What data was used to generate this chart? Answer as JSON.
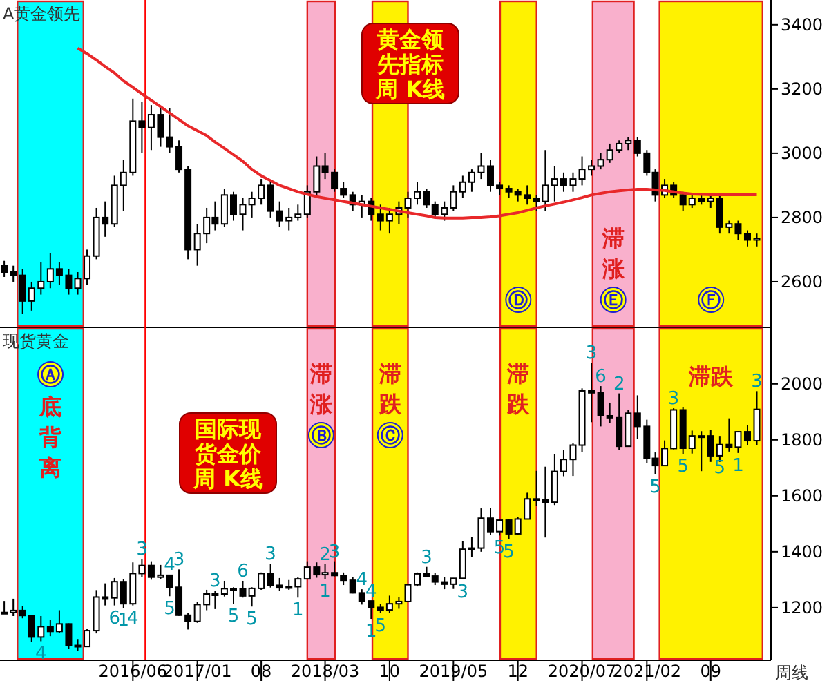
{
  "chart_data": [
    {
      "type": "candlestick",
      "title": "A黄金领先",
      "tick_labels": "y",
      "x": [
        "2015-04",
        "2015-05",
        "2015-06",
        "2015-07",
        "2015-08",
        "2015-09",
        "2015-10",
        "2015-11",
        "2015-12",
        "2016-01",
        "2016-02",
        "2016-03",
        "2016-04",
        "2016-05",
        "2016-06",
        "2016-07",
        "2016-08",
        "2016-09",
        "2016-10",
        "2016-11",
        "2016-12",
        "2017-01",
        "2017-02",
        "2017-03",
        "2017-04",
        "2017-05",
        "2017-06",
        "2017-07",
        "2017-08",
        "2017-09",
        "2017-10",
        "2017-11",
        "2017-12",
        "2018-01",
        "2018-02",
        "2018-03",
        "2018-04",
        "2018-05",
        "2018-06",
        "2018-07",
        "2018-08",
        "2018-09",
        "2018-10",
        "2018-11",
        "2018-12",
        "2019-01",
        "2019-02",
        "2019-03",
        "2019-04",
        "2019-05",
        "2019-06",
        "2019-07",
        "2019-08",
        "2019-09",
        "2019-10",
        "2019-11",
        "2019-12",
        "2020-01",
        "2020-02",
        "2020-03",
        "2020-04",
        "2020-05",
        "2020-06",
        "2020-07",
        "2020-08",
        "2020-09",
        "2020-10",
        "2020-11",
        "2020-12",
        "2021-01",
        "2021-02",
        "2021-03",
        "2021-04",
        "2021-05",
        "2021-06",
        "2021-07",
        "2021-08",
        "2021-09",
        "2021-10",
        "2021-11",
        "2021-12",
        "2022-01",
        "2022-02"
      ],
      "xlim": [
        "2015-03-18",
        "2022-03-20"
      ],
      "ylim": [
        2458,
        3477
      ],
      "yticks": [
        2600,
        2800,
        3000,
        3200,
        3400
      ],
      "series": [
        {
          "type": "candlestick",
          "color": "#000000",
          "ohlc": [
            [
              2650,
              2665,
              2615,
              2630
            ],
            [
              2630,
              2650,
              2600,
              2620
            ],
            [
              2620,
              2640,
              2500,
              2540
            ],
            [
              2540,
              2600,
              2510,
              2580
            ],
            [
              2580,
              2660,
              2560,
              2600
            ],
            [
              2600,
              2690,
              2580,
              2640
            ],
            [
              2640,
              2660,
              2590,
              2620
            ],
            [
              2620,
              2640,
              2560,
              2580
            ],
            [
              2580,
              2630,
              2560,
              2610
            ],
            [
              2610,
              2700,
              2590,
              2680
            ],
            [
              2680,
              2830,
              2670,
              2800
            ],
            [
              2800,
              2850,
              2740,
              2780
            ],
            [
              2780,
              2930,
              2770,
              2900
            ],
            [
              2900,
              2980,
              2820,
              2940
            ],
            [
              2940,
              3170,
              2930,
              3100
            ],
            [
              3100,
              3160,
              3000,
              3080
            ],
            [
              3080,
              3150,
              3010,
              3120
            ],
            [
              3120,
              3140,
              3020,
              3050
            ],
            [
              3050,
              3140,
              3000,
              3020
            ],
            [
              3020,
              3040,
              2940,
              2950
            ],
            [
              2950,
              2960,
              2670,
              2700
            ],
            [
              2700,
              2780,
              2650,
              2750
            ],
            [
              2750,
              2830,
              2720,
              2800
            ],
            [
              2800,
              2850,
              2760,
              2780
            ],
            [
              2780,
              2890,
              2770,
              2870
            ],
            [
              2870,
              2880,
              2790,
              2810
            ],
            [
              2810,
              2860,
              2760,
              2840
            ],
            [
              2840,
              2880,
              2800,
              2860
            ],
            [
              2860,
              2920,
              2840,
              2900
            ],
            [
              2900,
              2910,
              2800,
              2820
            ],
            [
              2820,
              2850,
              2770,
              2790
            ],
            [
              2790,
              2830,
              2760,
              2800
            ],
            [
              2800,
              2840,
              2790,
              2810
            ],
            [
              2810,
              2900,
              2800,
              2880
            ],
            [
              2880,
              2990,
              2870,
              2960
            ],
            [
              2960,
              3000,
              2920,
              2940
            ],
            [
              2940,
              2950,
              2880,
              2890
            ],
            [
              2890,
              2910,
              2860,
              2870
            ],
            [
              2870,
              2880,
              2820,
              2840
            ],
            [
              2840,
              2870,
              2800,
              2850
            ],
            [
              2850,
              2860,
              2790,
              2810
            ],
            [
              2810,
              2840,
              2760,
              2790
            ],
            [
              2790,
              2830,
              2750,
              2810
            ],
            [
              2810,
              2850,
              2780,
              2830
            ],
            [
              2830,
              2880,
              2800,
              2860
            ],
            [
              2860,
              2910,
              2840,
              2880
            ],
            [
              2880,
              2890,
              2830,
              2840
            ],
            [
              2840,
              2850,
              2800,
              2810
            ],
            [
              2810,
              2850,
              2790,
              2830
            ],
            [
              2830,
              2900,
              2820,
              2880
            ],
            [
              2880,
              2930,
              2860,
              2910
            ],
            [
              2910,
              2950,
              2880,
              2940
            ],
            [
              2940,
              3000,
              2920,
              2960
            ],
            [
              2960,
              2980,
              2880,
              2900
            ],
            [
              2900,
              2910,
              2870,
              2890
            ],
            [
              2890,
              2900,
              2860,
              2880
            ],
            [
              2880,
              2890,
              2850,
              2870
            ],
            [
              2870,
              2900,
              2840,
              2860
            ],
            [
              2860,
              2870,
              2820,
              2850
            ],
            [
              2850,
              3010,
              2820,
              2900
            ],
            [
              2900,
              2960,
              2850,
              2920
            ],
            [
              2920,
              2940,
              2880,
              2900
            ],
            [
              2900,
              2940,
              2880,
              2920
            ],
            [
              2920,
              2990,
              2900,
              2950
            ],
            [
              2950,
              2980,
              2930,
              2960
            ],
            [
              2960,
              3000,
              2950,
              2980
            ],
            [
              2980,
              3030,
              2970,
              3010
            ],
            [
              3010,
              3040,
              3000,
              3030
            ],
            [
              3030,
              3050,
              3010,
              3040
            ],
            [
              3040,
              3050,
              2990,
              3000
            ],
            [
              3000,
              3010,
              2930,
              2940
            ],
            [
              2940,
              2950,
              2850,
              2870
            ],
            [
              2870,
              2920,
              2860,
              2900
            ],
            [
              2900,
              2910,
              2860,
              2870
            ],
            [
              2870,
              2880,
              2820,
              2840
            ],
            [
              2840,
              2870,
              2830,
              2860
            ],
            [
              2860,
              2870,
              2840,
              2850
            ],
            [
              2850,
              2870,
              2830,
              2860
            ],
            [
              2860,
              2870,
              2750,
              2770
            ],
            [
              2770,
              2790,
              2750,
              2780
            ],
            [
              2780,
              2790,
              2730,
              2750
            ],
            [
              2750,
              2760,
              2710,
              2730
            ],
            [
              2730,
              2750,
              2710,
              2735
            ]
          ]
        },
        {
          "type": "line",
          "color": "#e8282a",
          "values": [
            null,
            null,
            null,
            null,
            null,
            null,
            null,
            null,
            3327,
            3310,
            3290,
            3270,
            3250,
            3225,
            3205,
            3185,
            3165,
            3145,
            3125,
            3105,
            3085,
            3070,
            3055,
            3035,
            3015,
            2995,
            2975,
            2950,
            2930,
            2915,
            2900,
            2890,
            2880,
            2872,
            2865,
            2860,
            2855,
            2850,
            2845,
            2840,
            2835,
            2830,
            2825,
            2820,
            2815,
            2810,
            2805,
            2800,
            2798,
            2798,
            2798,
            2800,
            2800,
            2802,
            2805,
            2810,
            2815,
            2822,
            2830,
            2836,
            2842,
            2848,
            2855,
            2862,
            2870,
            2875,
            2880,
            2883,
            2886,
            2888,
            2888,
            2886,
            2884,
            2880,
            2876,
            2873,
            2872,
            2871,
            2871,
            2871,
            2871,
            2871,
            2871
          ]
        }
      ],
      "bands": [
        {
          "axis": "x",
          "from": "2015-05-15",
          "to": "2015-12-20",
          "color": "#00ffff"
        },
        {
          "axis": "x",
          "from": "2018-01-01",
          "to": "2018-04-03",
          "color": "#f9b0cc"
        },
        {
          "axis": "x",
          "from": "2018-08-05",
          "to": "2018-12-01",
          "color": "#fff200"
        },
        {
          "axis": "x",
          "from": "2019-10-03",
          "to": "2020-02-01",
          "color": "#fff200",
          "label": "Ⓓ"
        },
        {
          "axis": "x",
          "from": "2020-08-05",
          "to": "2020-12-20",
          "color": "#f9b0cc",
          "label": "滞涨 Ⓔ"
        },
        {
          "axis": "x",
          "from": "2021-03-15",
          "to": "2022-02-20",
          "color": "#fff200",
          "label": "Ⓕ"
        }
      ],
      "ref_lines": [
        {
          "axis": "x",
          "value": "2016-07-12",
          "color": "#ff0000"
        }
      ],
      "annotations": [
        "黄金领先指标周 K线"
      ]
    },
    {
      "type": "candlestick",
      "title": "现货黄金",
      "x": [
        "2015-04",
        "2015-05",
        "2015-06",
        "2015-07",
        "2015-08",
        "2015-09",
        "2015-10",
        "2015-11",
        "2015-12",
        "2016-01",
        "2016-02",
        "2016-03",
        "2016-04",
        "2016-05",
        "2016-06",
        "2016-07",
        "2016-08",
        "2016-09",
        "2016-10",
        "2016-11",
        "2016-12",
        "2017-01",
        "2017-02",
        "2017-03",
        "2017-04",
        "2017-05",
        "2017-06",
        "2017-07",
        "2017-08",
        "2017-09",
        "2017-10",
        "2017-11",
        "2017-12",
        "2018-01",
        "2018-02",
        "2018-03",
        "2018-04",
        "2018-05",
        "2018-06",
        "2018-07",
        "2018-08",
        "2018-09",
        "2018-10",
        "2018-11",
        "2018-12",
        "2019-01",
        "2019-02",
        "2019-03",
        "2019-04",
        "2019-05",
        "2019-06",
        "2019-07",
        "2019-08",
        "2019-09",
        "2019-10",
        "2019-11",
        "2019-12",
        "2020-01",
        "2020-02",
        "2020-03",
        "2020-04",
        "2020-05",
        "2020-06",
        "2020-07",
        "2020-08",
        "2020-09",
        "2020-10",
        "2020-11",
        "2020-12",
        "2021-01",
        "2021-02",
        "2021-03",
        "2021-04",
        "2021-05",
        "2021-06",
        "2021-07",
        "2021-08",
        "2021-09",
        "2021-10",
        "2021-11",
        "2021-12",
        "2022-01",
        "2022-02"
      ],
      "xlim": [
        "2015-03-18",
        "2022-03-20"
      ],
      "xticks": [
        {
          "value": "2016-06",
          "label": "2016/06"
        },
        {
          "value": "2017-01",
          "label": "2017/01"
        },
        {
          "value": "2017-08",
          "label": "08"
        },
        {
          "value": "2018-03",
          "label": "2018/03"
        },
        {
          "value": "2018-10",
          "label": "10"
        },
        {
          "value": "2019-05",
          "label": "2019/05"
        },
        {
          "value": "2019-12",
          "label": "12"
        },
        {
          "value": "2020-07",
          "label": "2020/07"
        },
        {
          "value": "2021-02",
          "label": "2021/02"
        },
        {
          "value": "2021-09",
          "label": "09"
        }
      ],
      "ylim": [
        1012,
        2202
      ],
      "yticks": [
        1200,
        1400,
        1600,
        1800,
        2000
      ],
      "series": [
        {
          "type": "candlestick",
          "color": "#000000",
          "ohlc": [
            [
              1183,
              1224,
              1178,
              1183
            ],
            [
              1183,
              1232,
              1170,
              1190
            ],
            [
              1190,
              1205,
              1162,
              1172
            ],
            [
              1172,
              1175,
              1077,
              1095
            ],
            [
              1095,
              1170,
              1080,
              1132
            ],
            [
              1132,
              1157,
              1098,
              1115
            ],
            [
              1115,
              1191,
              1110,
              1142
            ],
            [
              1142,
              1144,
              1052,
              1065
            ],
            [
              1065,
              1088,
              1046,
              1061
            ],
            [
              1061,
              1123,
              1061,
              1118
            ],
            [
              1118,
              1263,
              1108,
              1238
            ],
            [
              1238,
              1287,
              1208,
              1235
            ],
            [
              1235,
              1306,
              1208,
              1293
            ],
            [
              1293,
              1303,
              1199,
              1214
            ],
            [
              1214,
              1362,
              1208,
              1322
            ],
            [
              1322,
              1375,
              1310,
              1351
            ],
            [
              1351,
              1366,
              1300,
              1309
            ],
            [
              1309,
              1353,
              1302,
              1316
            ],
            [
              1316,
              1318,
              1241,
              1273
            ],
            [
              1273,
              1337,
              1171,
              1173
            ],
            [
              1173,
              1180,
              1122,
              1151
            ],
            [
              1151,
              1220,
              1146,
              1211
            ],
            [
              1211,
              1264,
              1191,
              1249
            ],
            [
              1249,
              1261,
              1195,
              1249
            ],
            [
              1249,
              1296,
              1240,
              1268
            ],
            [
              1268,
              1273,
              1214,
              1268
            ],
            [
              1268,
              1296,
              1236,
              1242
            ],
            [
              1242,
              1273,
              1204,
              1269
            ],
            [
              1269,
              1326,
              1264,
              1322
            ],
            [
              1322,
              1357,
              1272,
              1280
            ],
            [
              1280,
              1306,
              1260,
              1271
            ],
            [
              1271,
              1299,
              1264,
              1275
            ],
            [
              1275,
              1309,
              1236,
              1303
            ],
            [
              1303,
              1366,
              1302,
              1345
            ],
            [
              1345,
              1362,
              1307,
              1318
            ],
            [
              1318,
              1356,
              1303,
              1325
            ],
            [
              1325,
              1366,
              1312,
              1315
            ],
            [
              1315,
              1326,
              1281,
              1298
            ],
            [
              1298,
              1309,
              1251,
              1253
            ],
            [
              1253,
              1266,
              1211,
              1224
            ],
            [
              1224,
              1224,
              1160,
              1201
            ],
            [
              1201,
              1214,
              1180,
              1192
            ],
            [
              1192,
              1243,
              1182,
              1214
            ],
            [
              1214,
              1237,
              1196,
              1222
            ],
            [
              1222,
              1284,
              1221,
              1282
            ],
            [
              1282,
              1326,
              1276,
              1321
            ],
            [
              1321,
              1346,
              1311,
              1313
            ],
            [
              1313,
              1324,
              1281,
              1292
            ],
            [
              1292,
              1310,
              1266,
              1284
            ],
            [
              1284,
              1306,
              1267,
              1305
            ],
            [
              1305,
              1439,
              1302,
              1409
            ],
            [
              1409,
              1453,
              1382,
              1413
            ],
            [
              1413,
              1555,
              1400,
              1520
            ],
            [
              1520,
              1557,
              1459,
              1472
            ],
            [
              1472,
              1517,
              1458,
              1513
            ],
            [
              1513,
              1516,
              1445,
              1464
            ],
            [
              1464,
              1524,
              1459,
              1517
            ],
            [
              1517,
              1611,
              1517,
              1589
            ],
            [
              1589,
              1689,
              1563,
              1585
            ],
            [
              1585,
              1704,
              1451,
              1577
            ],
            [
              1577,
              1748,
              1567,
              1687
            ],
            [
              1687,
              1765,
              1670,
              1730
            ],
            [
              1730,
              1789,
              1671,
              1781
            ],
            [
              1781,
              1984,
              1757,
              1975
            ],
            [
              1975,
              2075,
              1863,
              1968
            ],
            [
              1968,
              1992,
              1848,
              1886
            ],
            [
              1886,
              1933,
              1860,
              1879
            ],
            [
              1879,
              1966,
              1764,
              1777
            ],
            [
              1777,
              1906,
              1775,
              1895
            ],
            [
              1895,
              1959,
              1803,
              1848
            ],
            [
              1848,
              1872,
              1717,
              1734
            ],
            [
              1734,
              1755,
              1677,
              1708
            ],
            [
              1708,
              1798,
              1706,
              1769
            ],
            [
              1769,
              1913,
              1766,
              1907
            ],
            [
              1907,
              1917,
              1750,
              1770
            ],
            [
              1770,
              1833,
              1751,
              1814
            ],
            [
              1814,
              1831,
              1688,
              1814
            ],
            [
              1814,
              1836,
              1721,
              1743
            ],
            [
              1743,
              1814,
              1721,
              1783
            ],
            [
              1783,
              1877,
              1758,
              1774
            ],
            [
              1774,
              1831,
              1753,
              1829
            ],
            [
              1829,
              1853,
              1780,
              1797
            ],
            [
              1797,
              1974,
              1781,
              1909
            ]
          ]
        }
      ],
      "bands": [
        {
          "axis": "x",
          "from": "2015-05-15",
          "to": "2015-12-20",
          "color": "#00ffff",
          "label": "Ⓐ 底背离"
        },
        {
          "axis": "x",
          "from": "2018-01-01",
          "to": "2018-04-03",
          "color": "#f9b0cc",
          "label": "滞涨 Ⓑ"
        },
        {
          "axis": "x",
          "from": "2018-08-05",
          "to": "2018-12-01",
          "color": "#fff200",
          "label": "滞跌 Ⓒ"
        },
        {
          "axis": "x",
          "from": "2019-10-03",
          "to": "2020-02-01",
          "color": "#fff200",
          "label": "滞跌"
        },
        {
          "axis": "x",
          "from": "2020-08-05",
          "to": "2020-12-20",
          "color": "#f9b0cc"
        },
        {
          "axis": "x",
          "from": "2021-03-15",
          "to": "2022-02-20",
          "color": "#fff200",
          "label": "滞跌"
        }
      ],
      "ref_lines": [
        {
          "axis": "x",
          "value": "2016-07-12",
          "color": "#ff0000"
        }
      ],
      "annotations": [
        "国际现货金价周 K线",
        "周线",
        {
          "text": "4",
          "x": "2015-08",
          "y": 1080
        },
        {
          "text": "6",
          "x": "2016-04",
          "y": 1208
        },
        {
          "text": "4",
          "x": "2016-06",
          "y": 1208
        },
        {
          "text": "1",
          "x": "2016-05",
          "y": 1199
        },
        {
          "text": "3",
          "x": "2016-07",
          "y": 1375
        },
        {
          "text": "4",
          "x": "2016-10",
          "y": 1318
        },
        {
          "text": "3",
          "x": "2016-11",
          "y": 1337
        },
        {
          "text": "5",
          "x": "2016-10",
          "y": 1241
        },
        {
          "text": "3",
          "x": "2017-03",
          "y": 1261
        },
        {
          "text": "5",
          "x": "2017-05",
          "y": 1214
        },
        {
          "text": "6",
          "x": "2017-06",
          "y": 1296
        },
        {
          "text": "5",
          "x": "2017-07",
          "y": 1204
        },
        {
          "text": "3",
          "x": "2017-09",
          "y": 1357
        },
        {
          "text": "1",
          "x": "2017-12",
          "y": 1236
        },
        {
          "text": "2",
          "x": "2018-03",
          "y": 1356
        },
        {
          "text": "3",
          "x": "2018-04",
          "y": 1366
        },
        {
          "text": "1",
          "x": "2018-03",
          "y": 1303
        },
        {
          "text": "4",
          "x": "2018-07",
          "y": 1266
        },
        {
          "text": "4",
          "x": "2018-08",
          "y": 1224
        },
        {
          "text": "1",
          "x": "2018-08",
          "y": 1160
        },
        {
          "text": "5",
          "x": "2018-09",
          "y": 1180
        },
        {
          "text": "3",
          "x": "2019-02",
          "y": 1346
        },
        {
          "text": "3",
          "x": "2019-06",
          "y": 1302
        },
        {
          "text": "5",
          "x": "2019-10",
          "y": 1458
        },
        {
          "text": "5",
          "x": "2019-11",
          "y": 1445
        },
        {
          "text": "3",
          "x": "2020-08",
          "y": 2075
        },
        {
          "text": "6",
          "x": "2020-09",
          "y": 1992
        },
        {
          "text": "2",
          "x": "2020-11",
          "y": 1966
        },
        {
          "text": "5",
          "x": "2021-03",
          "y": 1677
        },
        {
          "text": "3",
          "x": "2021-05",
          "y": 1913
        },
        {
          "text": "5",
          "x": "2021-06",
          "y": 1750
        },
        {
          "text": "5",
          "x": "2021-10",
          "y": 1746
        },
        {
          "text": "1",
          "x": "2021-12",
          "y": 1753
        },
        {
          "text": "3",
          "x": "2022-02",
          "y": 1974
        }
      ]
    }
  ]
}
